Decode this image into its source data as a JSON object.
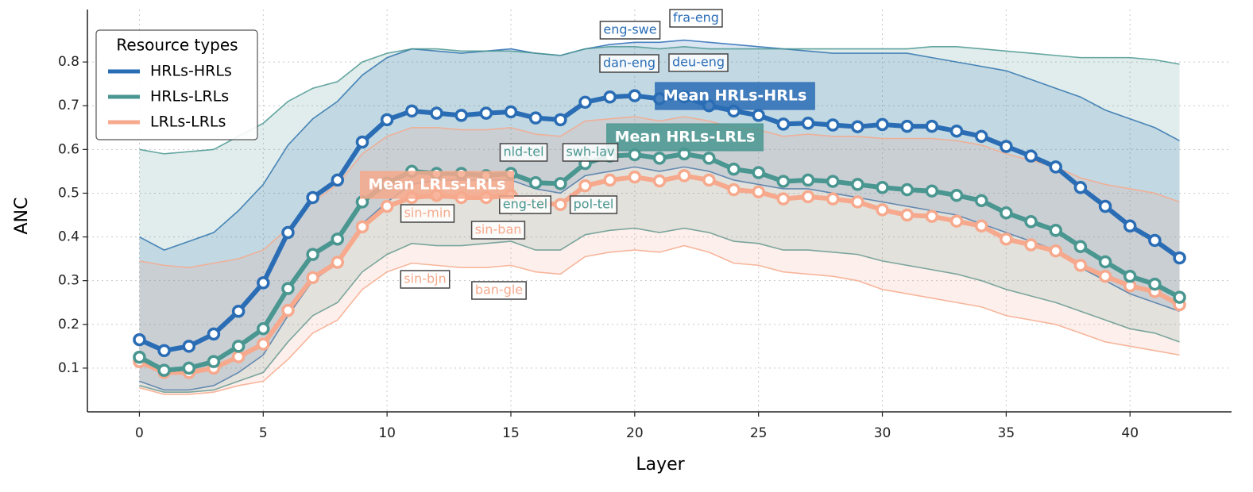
{
  "chart_data": {
    "type": "line",
    "xlabel": "Layer",
    "ylabel": "ANC",
    "legend_title": "Resource types",
    "legend": "upper left",
    "grid": true,
    "x": [
      0,
      1,
      2,
      3,
      4,
      5,
      6,
      7,
      8,
      9,
      10,
      11,
      12,
      13,
      14,
      15,
      16,
      17,
      18,
      19,
      20,
      21,
      22,
      23,
      24,
      25,
      26,
      27,
      28,
      29,
      30,
      31,
      32,
      33,
      34,
      35,
      36,
      37,
      38,
      39,
      40,
      41,
      42
    ],
    "xlim": [
      -2.1,
      44.1
    ],
    "ylim": [
      0.0,
      0.92
    ],
    "xticks": [
      0,
      5,
      10,
      15,
      20,
      25,
      30,
      35,
      40
    ],
    "yticks": [
      0.1,
      0.2,
      0.3,
      0.4,
      0.5,
      0.6,
      0.7,
      0.8
    ],
    "series": [
      {
        "name": "HRLs-HRLs",
        "color": "#2a6db5",
        "values": [
          0.165,
          0.14,
          0.15,
          0.178,
          0.23,
          0.295,
          0.41,
          0.49,
          0.53,
          0.617,
          0.668,
          0.688,
          0.683,
          0.678,
          0.683,
          0.686,
          0.672,
          0.668,
          0.708,
          0.72,
          0.723,
          0.716,
          0.72,
          0.7,
          0.688,
          0.678,
          0.658,
          0.66,
          0.656,
          0.652,
          0.657,
          0.653,
          0.653,
          0.642,
          0.63,
          0.607,
          0.585,
          0.56,
          0.513,
          0.47,
          0.425,
          0.392,
          0.352
        ],
        "band_upper": [
          0.4,
          0.37,
          0.39,
          0.41,
          0.46,
          0.52,
          0.61,
          0.67,
          0.71,
          0.77,
          0.81,
          0.83,
          0.825,
          0.82,
          0.825,
          0.83,
          0.82,
          0.815,
          0.83,
          0.84,
          0.845,
          0.845,
          0.85,
          0.845,
          0.84,
          0.835,
          0.83,
          0.825,
          0.82,
          0.82,
          0.82,
          0.82,
          0.81,
          0.8,
          0.79,
          0.78,
          0.76,
          0.74,
          0.72,
          0.69,
          0.67,
          0.65,
          0.62
        ],
        "band_lower": [
          0.07,
          0.05,
          0.05,
          0.06,
          0.09,
          0.13,
          0.22,
          0.3,
          0.34,
          0.43,
          0.48,
          0.52,
          0.53,
          0.53,
          0.53,
          0.53,
          0.51,
          0.5,
          0.54,
          0.55,
          0.56,
          0.55,
          0.56,
          0.55,
          0.53,
          0.52,
          0.51,
          0.51,
          0.5,
          0.49,
          0.48,
          0.47,
          0.46,
          0.45,
          0.43,
          0.41,
          0.39,
          0.37,
          0.33,
          0.3,
          0.27,
          0.25,
          0.23
        ]
      },
      {
        "name": "HRLs-LRLs",
        "color": "#4a9690",
        "values": [
          0.125,
          0.095,
          0.1,
          0.115,
          0.15,
          0.19,
          0.282,
          0.36,
          0.395,
          0.48,
          0.523,
          0.55,
          0.545,
          0.545,
          0.54,
          0.545,
          0.524,
          0.522,
          0.568,
          0.585,
          0.588,
          0.58,
          0.59,
          0.58,
          0.555,
          0.547,
          0.527,
          0.53,
          0.527,
          0.52,
          0.513,
          0.508,
          0.505,
          0.495,
          0.483,
          0.455,
          0.435,
          0.415,
          0.378,
          0.343,
          0.31,
          0.292,
          0.262
        ],
        "band_upper": [
          0.6,
          0.59,
          0.595,
          0.6,
          0.63,
          0.66,
          0.71,
          0.74,
          0.755,
          0.8,
          0.82,
          0.83,
          0.83,
          0.825,
          0.825,
          0.825,
          0.82,
          0.815,
          0.83,
          0.835,
          0.835,
          0.83,
          0.835,
          0.83,
          0.83,
          0.83,
          0.83,
          0.83,
          0.83,
          0.83,
          0.83,
          0.83,
          0.835,
          0.835,
          0.83,
          0.825,
          0.82,
          0.815,
          0.81,
          0.81,
          0.81,
          0.805,
          0.795
        ],
        "band_lower": [
          0.06,
          0.045,
          0.045,
          0.05,
          0.07,
          0.09,
          0.16,
          0.22,
          0.25,
          0.32,
          0.36,
          0.385,
          0.38,
          0.38,
          0.385,
          0.39,
          0.37,
          0.37,
          0.405,
          0.415,
          0.42,
          0.41,
          0.42,
          0.41,
          0.39,
          0.385,
          0.37,
          0.37,
          0.365,
          0.36,
          0.345,
          0.335,
          0.325,
          0.315,
          0.3,
          0.28,
          0.265,
          0.25,
          0.23,
          0.21,
          0.19,
          0.18,
          0.16
        ]
      },
      {
        "name": "LRLs-LRLs",
        "color": "#f6a98c",
        "values": [
          0.115,
          0.09,
          0.09,
          0.1,
          0.126,
          0.155,
          0.232,
          0.307,
          0.342,
          0.423,
          0.47,
          0.49,
          0.495,
          0.49,
          0.49,
          0.495,
          0.478,
          0.474,
          0.517,
          0.53,
          0.537,
          0.528,
          0.54,
          0.53,
          0.508,
          0.503,
          0.487,
          0.492,
          0.487,
          0.48,
          0.462,
          0.45,
          0.447,
          0.436,
          0.425,
          0.395,
          0.382,
          0.368,
          0.335,
          0.31,
          0.288,
          0.275,
          0.245
        ],
        "band_upper": [
          0.345,
          0.335,
          0.33,
          0.34,
          0.35,
          0.37,
          0.42,
          0.48,
          0.52,
          0.59,
          0.63,
          0.65,
          0.65,
          0.645,
          0.645,
          0.65,
          0.635,
          0.63,
          0.665,
          0.67,
          0.675,
          0.665,
          0.675,
          0.665,
          0.65,
          0.645,
          0.63,
          0.635,
          0.63,
          0.63,
          0.625,
          0.625,
          0.625,
          0.62,
          0.61,
          0.59,
          0.575,
          0.56,
          0.535,
          0.52,
          0.51,
          0.5,
          0.48
        ],
        "band_lower": [
          0.055,
          0.04,
          0.04,
          0.045,
          0.06,
          0.07,
          0.12,
          0.18,
          0.21,
          0.28,
          0.32,
          0.34,
          0.335,
          0.33,
          0.33,
          0.335,
          0.32,
          0.315,
          0.355,
          0.365,
          0.37,
          0.365,
          0.38,
          0.365,
          0.34,
          0.335,
          0.32,
          0.315,
          0.31,
          0.3,
          0.28,
          0.27,
          0.26,
          0.25,
          0.24,
          0.22,
          0.21,
          0.2,
          0.18,
          0.16,
          0.15,
          0.14,
          0.13
        ]
      }
    ],
    "annotations": [
      {
        "text": "eng-swe",
        "color": "#2a6db5"
      },
      {
        "text": "fra-eng",
        "color": "#2a6db5"
      },
      {
        "text": "dan-eng",
        "color": "#2a6db5"
      },
      {
        "text": "deu-eng",
        "color": "#2a6db5"
      },
      {
        "text": "Mean HRLs-HRLs",
        "color": "#2a6db5"
      },
      {
        "text": "Mean HRLs-LRLs",
        "color": "#4a9690"
      },
      {
        "text": "nld-tel",
        "color": "#4a9690"
      },
      {
        "text": "swh-lav",
        "color": "#4a9690"
      },
      {
        "text": "eng-tel",
        "color": "#4a9690"
      },
      {
        "text": "pol-tel",
        "color": "#4a9690"
      },
      {
        "text": "Mean LRLs-LRLs",
        "color": "#f6a98c"
      },
      {
        "text": "sin-min",
        "color": "#f6a98c"
      },
      {
        "text": "sin-ban",
        "color": "#f6a98c"
      },
      {
        "text": "sin-bjn",
        "color": "#f6a98c"
      },
      {
        "text": "ban-gle",
        "color": "#f6a98c"
      }
    ]
  }
}
